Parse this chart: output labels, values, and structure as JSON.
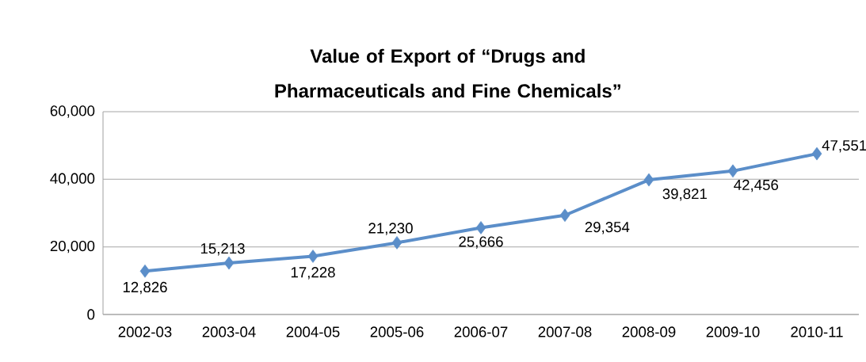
{
  "chart_data": {
    "type": "line",
    "title": "Value of Export of “Drugs and Pharmaceuticals and Fine Chemicals”",
    "categories": [
      "2002-03",
      "2003-04",
      "2004-05",
      "2005-06",
      "2006-07",
      "2007-08",
      "2008-09",
      "2009-10",
      "2010-11"
    ],
    "values": [
      12826,
      15213,
      17228,
      21230,
      25666,
      29354,
      39821,
      42456,
      47551
    ],
    "value_labels": [
      "12,826",
      "15,213",
      "17,228",
      "21,230",
      "25,666",
      "29,354",
      "39,821",
      "42,456",
      "47,551"
    ],
    "color": "#5b8ec9",
    "marker": "diamond",
    "line_style": "solid",
    "ylim": [
      0,
      60000
    ],
    "yticks": [
      {
        "value": 0,
        "label": "0"
      },
      {
        "value": 20000,
        "label": "20,000"
      },
      {
        "value": 40000,
        "label": "40,000"
      },
      {
        "value": 60000,
        "label": "60,000"
      }
    ],
    "grid": "y"
  }
}
